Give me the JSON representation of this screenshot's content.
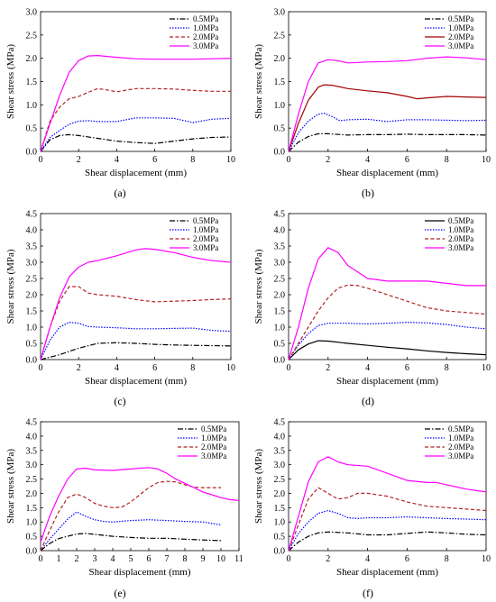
{
  "figure": {
    "legend_position": "top-right",
    "styles": {
      "0.5MPa": {
        "color": "#000000",
        "dash": "6,2,1.5,2"
      },
      "1.0MPa": {
        "color": "#0000ff",
        "dash": "1.5,1.5"
      },
      "2.0MPa": {
        "color": "#b22222",
        "dash": "4,2.5"
      },
      "3.0MPa": {
        "color": "#ff00ff",
        "dash": ""
      }
    },
    "b_overrides": {
      "2.0MPa": {
        "color": "#a00000",
        "dash": ""
      }
    },
    "d_overrides": {
      "0.5MPa": {
        "color": "#000000",
        "dash": ""
      }
    }
  },
  "chart_data": [
    {
      "type": "line",
      "panel_label": "(a)",
      "xlabel": "Shear displacement (mm)",
      "ylabel": "Shear stress (MPa)",
      "xlim": [
        0,
        10
      ],
      "ylim": [
        0,
        3.0
      ],
      "xticks": [
        "0",
        "2",
        "4",
        "6",
        "8",
        "10"
      ],
      "yticks": [
        "0.0",
        "0.5",
        "1.0",
        "1.5",
        "2.0",
        "2.5",
        "3.0"
      ],
      "legend": [
        "0.5MPa",
        "1.0MPa",
        "2.0MPa",
        "3.0MPa"
      ],
      "series": [
        {
          "name": "0.5MPa",
          "x": [
            0,
            0.5,
            1,
            1.5,
            2,
            3,
            4,
            5,
            6,
            7,
            8,
            9,
            10
          ],
          "y": [
            0,
            0.25,
            0.34,
            0.36,
            0.34,
            0.28,
            0.22,
            0.19,
            0.17,
            0.22,
            0.27,
            0.3,
            0.31
          ]
        },
        {
          "name": "1.0MPa",
          "x": [
            0,
            0.5,
            1,
            1.5,
            2,
            2.5,
            3,
            4,
            5,
            6,
            7,
            8,
            9,
            10
          ],
          "y": [
            0,
            0.3,
            0.45,
            0.58,
            0.65,
            0.66,
            0.64,
            0.64,
            0.72,
            0.72,
            0.71,
            0.62,
            0.69,
            0.71
          ]
        },
        {
          "name": "2.0MPa",
          "x": [
            0,
            0.5,
            1,
            1.5,
            2,
            2.5,
            3,
            3.5,
            4,
            5,
            6,
            7,
            8,
            9,
            10
          ],
          "y": [
            0,
            0.65,
            0.95,
            1.13,
            1.18,
            1.27,
            1.35,
            1.32,
            1.28,
            1.35,
            1.35,
            1.34,
            1.31,
            1.29,
            1.29
          ]
        },
        {
          "name": "3.0MPa",
          "x": [
            0,
            0.5,
            1,
            1.5,
            2,
            2.5,
            3,
            4,
            5,
            6,
            7,
            8,
            9,
            10
          ],
          "y": [
            0,
            0.6,
            1.2,
            1.7,
            1.95,
            2.05,
            2.06,
            2.02,
            1.99,
            1.98,
            1.98,
            1.98,
            1.99,
            2.0
          ]
        }
      ]
    },
    {
      "type": "line",
      "panel_label": "(b)",
      "xlabel": "Shear displacement (mm)",
      "ylabel": "Shear stress (MPa)",
      "xlim": [
        0,
        10
      ],
      "ylim": [
        0,
        3.0
      ],
      "xticks": [
        "0",
        "2",
        "4",
        "6",
        "8",
        "10"
      ],
      "yticks": [
        "0.0",
        "0.5",
        "1.0",
        "1.5",
        "2.0",
        "2.5",
        "3.0"
      ],
      "legend": [
        "0.5MPa",
        "1.0MPa",
        "2.0MPa",
        "3.0MPa"
      ],
      "series": [
        {
          "name": "0.5MPa",
          "x": [
            0,
            0.5,
            1,
            1.5,
            2,
            3,
            4,
            5,
            6,
            7,
            8,
            9,
            10
          ],
          "y": [
            0,
            0.2,
            0.32,
            0.38,
            0.38,
            0.35,
            0.36,
            0.36,
            0.37,
            0.36,
            0.36,
            0.36,
            0.35
          ]
        },
        {
          "name": "1.0MPa",
          "x": [
            0,
            0.5,
            1,
            1.5,
            1.8,
            2.2,
            2.6,
            3,
            4,
            5,
            6,
            7,
            8,
            9,
            10
          ],
          "y": [
            0,
            0.4,
            0.65,
            0.8,
            0.82,
            0.75,
            0.66,
            0.68,
            0.69,
            0.64,
            0.68,
            0.68,
            0.67,
            0.66,
            0.67
          ]
        },
        {
          "name": "2.0MPa",
          "x": [
            0,
            0.5,
            1,
            1.5,
            1.8,
            2.2,
            3,
            4,
            5,
            6,
            6.5,
            7,
            8,
            9,
            10
          ],
          "y": [
            0,
            0.6,
            1.1,
            1.38,
            1.43,
            1.42,
            1.35,
            1.3,
            1.26,
            1.18,
            1.13,
            1.15,
            1.18,
            1.17,
            1.16
          ]
        },
        {
          "name": "3.0MPa",
          "x": [
            0,
            0.5,
            1,
            1.5,
            2,
            2.5,
            3,
            4,
            5,
            6,
            7,
            8,
            9,
            10
          ],
          "y": [
            0,
            0.8,
            1.5,
            1.9,
            1.97,
            1.95,
            1.9,
            1.92,
            1.93,
            1.95,
            2.0,
            2.03,
            2.01,
            1.97
          ]
        }
      ]
    },
    {
      "type": "line",
      "panel_label": "(c)",
      "xlabel": "Shear displacement (mm)",
      "ylabel": "Shear stress (MPa)",
      "xlim": [
        0,
        10
      ],
      "ylim": [
        0,
        4.5
      ],
      "xticks": [
        "0",
        "2",
        "4",
        "6",
        "8",
        "10"
      ],
      "yticks": [
        "0.0",
        "0.5",
        "1.0",
        "1.5",
        "2.0",
        "2.5",
        "3.0",
        "3.5",
        "4.0",
        "4.5"
      ],
      "legend": [
        "0.5MPa",
        "1.0MPa",
        "2.0MPa",
        "3.0MPa"
      ],
      "series": [
        {
          "name": "0.5MPa",
          "x": [
            0,
            1,
            2,
            3,
            4,
            5,
            6,
            7,
            8,
            9,
            10
          ],
          "y": [
            0,
            0.15,
            0.35,
            0.5,
            0.52,
            0.5,
            0.47,
            0.45,
            0.44,
            0.43,
            0.42
          ]
        },
        {
          "name": "1.0MPa",
          "x": [
            0,
            0.5,
            1,
            1.5,
            2,
            2.5,
            3,
            4,
            5,
            6,
            7,
            8,
            9,
            10
          ],
          "y": [
            0,
            0.6,
            1.0,
            1.15,
            1.12,
            1.02,
            1.0,
            0.98,
            0.95,
            0.95,
            0.96,
            0.97,
            0.9,
            0.87
          ]
        },
        {
          "name": "2.0MPa",
          "x": [
            0,
            0.5,
            1,
            1.5,
            2,
            2.5,
            3,
            4,
            5,
            6,
            7,
            8,
            9,
            10
          ],
          "y": [
            0,
            1.0,
            1.8,
            2.25,
            2.25,
            2.05,
            2.0,
            1.95,
            1.85,
            1.78,
            1.8,
            1.82,
            1.85,
            1.87
          ]
        },
        {
          "name": "3.0MPa",
          "x": [
            0,
            0.5,
            1,
            1.5,
            2,
            2.5,
            3,
            4,
            5,
            5.5,
            6,
            7,
            8,
            9,
            10
          ],
          "y": [
            0,
            1.0,
            1.9,
            2.55,
            2.85,
            3.0,
            3.05,
            3.2,
            3.38,
            3.42,
            3.4,
            3.3,
            3.15,
            3.05,
            3.0
          ]
        }
      ]
    },
    {
      "type": "line",
      "panel_label": "(d)",
      "xlabel": "Shear displacement (mm)",
      "ylabel": "Shear stress (MPa)",
      "xlim": [
        0,
        10
      ],
      "ylim": [
        0,
        4.5
      ],
      "xticks": [
        "0",
        "2",
        "4",
        "6",
        "8",
        "10"
      ],
      "yticks": [
        "0.0",
        "0.5",
        "1.0",
        "1.5",
        "2.0",
        "2.5",
        "3.0",
        "3.5",
        "4.0",
        "4.5"
      ],
      "legend": [
        "0.5MPa",
        "1.0MPa",
        "2.0MPa",
        "3.0MPa"
      ],
      "series": [
        {
          "name": "0.5MPa",
          "x": [
            0,
            0.5,
            1,
            1.5,
            2,
            3,
            4,
            5,
            6,
            7,
            8,
            9,
            10
          ],
          "y": [
            0,
            0.3,
            0.48,
            0.58,
            0.57,
            0.5,
            0.44,
            0.38,
            0.33,
            0.27,
            0.22,
            0.18,
            0.15
          ]
        },
        {
          "name": "1.0MPa",
          "x": [
            0,
            0.5,
            1,
            1.5,
            2,
            3,
            4,
            5,
            6,
            7,
            8,
            9,
            10
          ],
          "y": [
            0,
            0.45,
            0.8,
            1.05,
            1.12,
            1.12,
            1.1,
            1.12,
            1.15,
            1.13,
            1.08,
            1.0,
            0.95
          ]
        },
        {
          "name": "2.0MPa",
          "x": [
            0,
            0.5,
            1,
            1.5,
            2,
            2.5,
            3,
            3.5,
            4,
            5,
            6,
            7,
            8,
            9,
            10
          ],
          "y": [
            0,
            0.5,
            1.0,
            1.5,
            1.9,
            2.2,
            2.3,
            2.28,
            2.2,
            2.0,
            1.8,
            1.6,
            1.5,
            1.45,
            1.4
          ]
        },
        {
          "name": "3.0MPa",
          "x": [
            0,
            0.5,
            1,
            1.5,
            2,
            2.5,
            3,
            4,
            5,
            6,
            7,
            8,
            9,
            10
          ],
          "y": [
            0,
            1.0,
            2.2,
            3.1,
            3.45,
            3.3,
            2.9,
            2.5,
            2.42,
            2.42,
            2.42,
            2.35,
            2.28,
            2.28
          ]
        }
      ]
    },
    {
      "type": "line",
      "panel_label": "(e)",
      "xlabel": "Shear displacement (mm)",
      "ylabel": "Shear stress (MPa)",
      "xlim": [
        0,
        11
      ],
      "ylim": [
        0,
        4.5
      ],
      "xticks": [
        "0",
        "1",
        "2",
        "3",
        "4",
        "5",
        "6",
        "7",
        "8",
        "9",
        "10",
        "11"
      ],
      "yticks": [
        "0.0",
        "0.5",
        "1.0",
        "1.5",
        "2.0",
        "2.5",
        "3.0",
        "3.5",
        "4.0",
        "4.5"
      ],
      "legend": [
        "0.5MPa",
        "1.0MPa",
        "2.0MPa",
        "3.0MPa"
      ],
      "series": [
        {
          "name": "0.5MPa",
          "x": [
            0,
            0.5,
            1,
            1.5,
            2,
            2.5,
            3,
            4,
            5,
            6,
            7,
            8,
            9,
            10
          ],
          "y": [
            0,
            0.25,
            0.42,
            0.5,
            0.58,
            0.6,
            0.57,
            0.5,
            0.46,
            0.43,
            0.43,
            0.4,
            0.37,
            0.35
          ]
        },
        {
          "name": "1.0MPa",
          "x": [
            0,
            0.5,
            1,
            1.5,
            2,
            2.5,
            3,
            3.5,
            4,
            5,
            6,
            7,
            8,
            9,
            10
          ],
          "y": [
            0,
            0.4,
            0.75,
            1.1,
            1.35,
            1.2,
            1.08,
            1.02,
            1.0,
            1.05,
            1.08,
            1.05,
            1.02,
            1.0,
            0.9
          ]
        },
        {
          "name": "2.0MPa",
          "x": [
            0,
            0.5,
            1,
            1.5,
            2,
            2.5,
            3,
            3.5,
            4,
            4.5,
            5,
            5.5,
            6,
            6.5,
            7,
            7.5,
            8,
            8.5,
            9,
            9.5,
            10
          ],
          "y": [
            0,
            0.7,
            1.35,
            1.85,
            1.98,
            1.85,
            1.65,
            1.55,
            1.5,
            1.52,
            1.7,
            1.95,
            2.2,
            2.38,
            2.42,
            2.4,
            2.3,
            2.22,
            2.2,
            2.2,
            2.2
          ]
        },
        {
          "name": "3.0MPa",
          "x": [
            0,
            0.5,
            1,
            1.5,
            2,
            2.5,
            3,
            4,
            5,
            6,
            6.5,
            7,
            7.5,
            8,
            8.5,
            9,
            9.5,
            10,
            10.5,
            11
          ],
          "y": [
            0.3,
            1.2,
            1.9,
            2.5,
            2.85,
            2.88,
            2.82,
            2.8,
            2.85,
            2.9,
            2.85,
            2.7,
            2.5,
            2.35,
            2.2,
            2.05,
            1.95,
            1.85,
            1.78,
            1.75
          ]
        }
      ]
    },
    {
      "type": "line",
      "panel_label": "(f)",
      "xlabel": "Shear displacement (mm)",
      "ylabel": "Shear stress (MPa)",
      "xlim": [
        0,
        10
      ],
      "ylim": [
        0,
        4.5
      ],
      "xticks": [
        "0",
        "2",
        "4",
        "6",
        "8",
        "10"
      ],
      "yticks": [
        "0.0",
        "0.5",
        "1.0",
        "1.5",
        "2.0",
        "2.5",
        "3.0",
        "3.5",
        "4.0",
        "4.5"
      ],
      "legend": [
        "0.5MPa",
        "1.0MPa",
        "2.0MPa",
        "3.0MPa"
      ],
      "series": [
        {
          "name": "0.5MPa",
          "x": [
            0,
            0.5,
            1,
            1.5,
            2,
            3,
            4,
            5,
            6,
            7,
            8,
            9,
            10
          ],
          "y": [
            0,
            0.3,
            0.5,
            0.62,
            0.65,
            0.62,
            0.55,
            0.55,
            0.6,
            0.65,
            0.62,
            0.57,
            0.55
          ]
        },
        {
          "name": "1.0MPa",
          "x": [
            0,
            0.5,
            1,
            1.5,
            2,
            2.5,
            3,
            3.5,
            4,
            5,
            6,
            7,
            8,
            9,
            10
          ],
          "y": [
            0,
            0.6,
            1.0,
            1.3,
            1.4,
            1.3,
            1.15,
            1.12,
            1.15,
            1.15,
            1.18,
            1.15,
            1.12,
            1.1,
            1.08
          ]
        },
        {
          "name": "2.0MPa",
          "x": [
            0,
            0.5,
            1,
            1.5,
            2,
            2.5,
            3,
            3.5,
            4,
            5,
            6,
            7,
            8,
            9,
            10
          ],
          "y": [
            0,
            0.9,
            1.8,
            2.2,
            2.0,
            1.8,
            1.85,
            2.0,
            2.0,
            1.9,
            1.7,
            1.55,
            1.5,
            1.45,
            1.4
          ]
        },
        {
          "name": "3.0MPa",
          "x": [
            0,
            0.5,
            1,
            1.5,
            2,
            2.5,
            3,
            4,
            5,
            6,
            7,
            7.5,
            8,
            9,
            10
          ],
          "y": [
            0,
            1.2,
            2.4,
            3.1,
            3.28,
            3.1,
            3.0,
            2.95,
            2.7,
            2.45,
            2.38,
            2.38,
            2.3,
            2.15,
            2.05
          ]
        }
      ]
    }
  ]
}
